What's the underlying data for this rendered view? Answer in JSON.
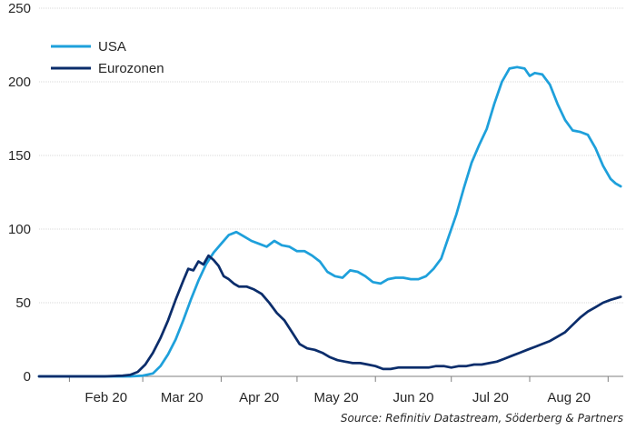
{
  "chart_data": {
    "type": "line",
    "title": "",
    "xlabel": "",
    "ylabel": "",
    "ylim": [
      0,
      250
    ],
    "yticks": [
      0,
      50,
      100,
      150,
      200,
      250
    ],
    "x_categories": [
      "Feb 20",
      "Mar 20",
      "Apr 20",
      "May 20",
      "Jun 20",
      "Jul 20",
      "Aug 20"
    ],
    "grid": "horizontal",
    "legend_position": "top-left",
    "series": [
      {
        "name": "USA",
        "color": "#1ea0db",
        "points": [
          [
            "2020-01-20",
            0
          ],
          [
            "2020-02-10",
            0
          ],
          [
            "2020-02-25",
            0
          ],
          [
            "2020-03-01",
            0.5
          ],
          [
            "2020-03-05",
            2
          ],
          [
            "2020-03-08",
            7
          ],
          [
            "2020-03-11",
            15
          ],
          [
            "2020-03-14",
            25
          ],
          [
            "2020-03-17",
            38
          ],
          [
            "2020-03-20",
            52
          ],
          [
            "2020-03-23",
            65
          ],
          [
            "2020-03-26",
            76
          ],
          [
            "2020-03-29",
            84
          ],
          [
            "2020-04-01",
            90
          ],
          [
            "2020-04-04",
            96
          ],
          [
            "2020-04-07",
            98
          ],
          [
            "2020-04-10",
            95
          ],
          [
            "2020-04-13",
            92
          ],
          [
            "2020-04-16",
            90
          ],
          [
            "2020-04-19",
            88
          ],
          [
            "2020-04-22",
            92
          ],
          [
            "2020-04-25",
            89
          ],
          [
            "2020-04-28",
            88
          ],
          [
            "2020-05-01",
            85
          ],
          [
            "2020-05-04",
            85
          ],
          [
            "2020-05-07",
            82
          ],
          [
            "2020-05-10",
            78
          ],
          [
            "2020-05-13",
            71
          ],
          [
            "2020-05-16",
            68
          ],
          [
            "2020-05-19",
            67
          ],
          [
            "2020-05-22",
            72
          ],
          [
            "2020-05-25",
            71
          ],
          [
            "2020-05-28",
            68
          ],
          [
            "2020-05-31",
            64
          ],
          [
            "2020-06-03",
            63
          ],
          [
            "2020-06-06",
            66
          ],
          [
            "2020-06-09",
            67
          ],
          [
            "2020-06-12",
            67
          ],
          [
            "2020-06-15",
            66
          ],
          [
            "2020-06-18",
            66
          ],
          [
            "2020-06-21",
            68
          ],
          [
            "2020-06-24",
            73
          ],
          [
            "2020-06-27",
            80
          ],
          [
            "2020-06-30",
            95
          ],
          [
            "2020-07-03",
            110
          ],
          [
            "2020-07-06",
            128
          ],
          [
            "2020-07-09",
            145
          ],
          [
            "2020-07-12",
            157
          ],
          [
            "2020-07-15",
            168
          ],
          [
            "2020-07-18",
            185
          ],
          [
            "2020-07-21",
            200
          ],
          [
            "2020-07-24",
            209
          ],
          [
            "2020-07-27",
            210
          ],
          [
            "2020-07-30",
            209
          ],
          [
            "2020-08-01",
            204
          ],
          [
            "2020-08-03",
            206
          ],
          [
            "2020-08-06",
            205
          ],
          [
            "2020-08-09",
            198
          ],
          [
            "2020-08-12",
            185
          ],
          [
            "2020-08-15",
            174
          ],
          [
            "2020-08-18",
            167
          ],
          [
            "2020-08-21",
            166
          ],
          [
            "2020-08-24",
            164
          ],
          [
            "2020-08-27",
            155
          ],
          [
            "2020-08-30",
            143
          ],
          [
            "2020-09-02",
            134
          ],
          [
            "2020-09-04",
            131
          ],
          [
            "2020-09-06",
            129
          ]
        ]
      },
      {
        "name": "Eurozonen",
        "color": "#0b2d6b",
        "points": [
          [
            "2020-01-20",
            0
          ],
          [
            "2020-02-15",
            0
          ],
          [
            "2020-02-22",
            0.5
          ],
          [
            "2020-02-25",
            1
          ],
          [
            "2020-02-28",
            3
          ],
          [
            "2020-03-02",
            8
          ],
          [
            "2020-03-05",
            16
          ],
          [
            "2020-03-08",
            26
          ],
          [
            "2020-03-11",
            38
          ],
          [
            "2020-03-14",
            52
          ],
          [
            "2020-03-17",
            65
          ],
          [
            "2020-03-19",
            73
          ],
          [
            "2020-03-21",
            72
          ],
          [
            "2020-03-23",
            78
          ],
          [
            "2020-03-25",
            76
          ],
          [
            "2020-03-27",
            82
          ],
          [
            "2020-03-29",
            79
          ],
          [
            "2020-03-31",
            75
          ],
          [
            "2020-04-02",
            68
          ],
          [
            "2020-04-04",
            66
          ],
          [
            "2020-04-06",
            63
          ],
          [
            "2020-04-08",
            61
          ],
          [
            "2020-04-11",
            61
          ],
          [
            "2020-04-14",
            59
          ],
          [
            "2020-04-17",
            56
          ],
          [
            "2020-04-20",
            50
          ],
          [
            "2020-04-23",
            43
          ],
          [
            "2020-04-26",
            38
          ],
          [
            "2020-04-29",
            30
          ],
          [
            "2020-05-02",
            22
          ],
          [
            "2020-05-05",
            19
          ],
          [
            "2020-05-08",
            18
          ],
          [
            "2020-05-11",
            16
          ],
          [
            "2020-05-14",
            13
          ],
          [
            "2020-05-17",
            11
          ],
          [
            "2020-05-20",
            10
          ],
          [
            "2020-05-23",
            9
          ],
          [
            "2020-05-26",
            9
          ],
          [
            "2020-05-29",
            8
          ],
          [
            "2020-06-01",
            7
          ],
          [
            "2020-06-04",
            5
          ],
          [
            "2020-06-07",
            5
          ],
          [
            "2020-06-10",
            6
          ],
          [
            "2020-06-13",
            6
          ],
          [
            "2020-06-16",
            6
          ],
          [
            "2020-06-19",
            6
          ],
          [
            "2020-06-22",
            6
          ],
          [
            "2020-06-25",
            7
          ],
          [
            "2020-06-28",
            7
          ],
          [
            "2020-07-01",
            6
          ],
          [
            "2020-07-04",
            7
          ],
          [
            "2020-07-07",
            7
          ],
          [
            "2020-07-10",
            8
          ],
          [
            "2020-07-13",
            8
          ],
          [
            "2020-07-16",
            9
          ],
          [
            "2020-07-19",
            10
          ],
          [
            "2020-07-22",
            12
          ],
          [
            "2020-07-25",
            14
          ],
          [
            "2020-07-28",
            16
          ],
          [
            "2020-07-31",
            18
          ],
          [
            "2020-08-03",
            20
          ],
          [
            "2020-08-06",
            22
          ],
          [
            "2020-08-09",
            24
          ],
          [
            "2020-08-12",
            27
          ],
          [
            "2020-08-15",
            30
          ],
          [
            "2020-08-18",
            35
          ],
          [
            "2020-08-21",
            40
          ],
          [
            "2020-08-24",
            44
          ],
          [
            "2020-08-27",
            47
          ],
          [
            "2020-08-30",
            50
          ],
          [
            "2020-09-02",
            52
          ],
          [
            "2020-09-06",
            54
          ]
        ]
      }
    ]
  },
  "source": "Source: Refinitiv Datastream, Söderberg & Partners"
}
